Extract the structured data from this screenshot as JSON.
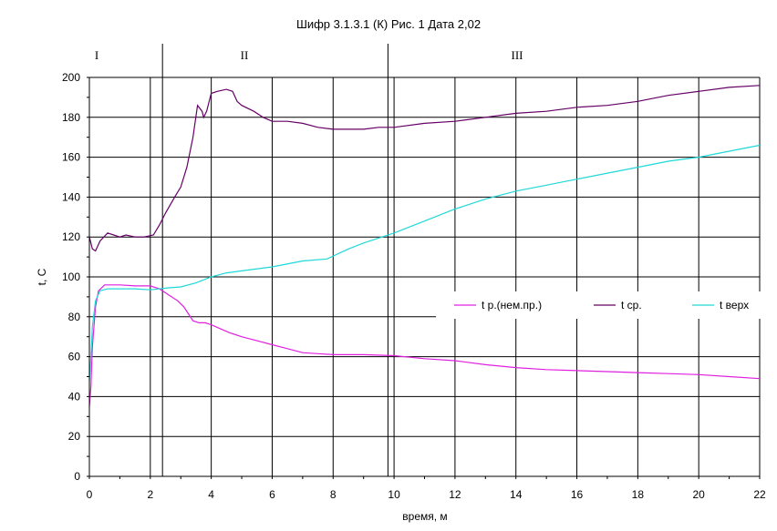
{
  "chart_data": {
    "type": "line",
    "title": "Шифр 3.1.3.1 (К) Рис. 1 Дата 2,02",
    "xlabel": "время, м",
    "ylabel": "t, C",
    "xlim": [
      0,
      22
    ],
    "ylim": [
      0,
      200
    ],
    "x_ticks": [
      "0",
      "2",
      "4",
      "6",
      "8",
      "10",
      "12",
      "14",
      "16",
      "18",
      "20",
      "22"
    ],
    "y_ticks": [
      "0",
      "20",
      "40",
      "60",
      "80",
      "100",
      "120",
      "140",
      "160",
      "180",
      "200"
    ],
    "grid": true,
    "legend_position": "right",
    "regions": [
      {
        "label": "I",
        "x_start": 0,
        "x_end": 2.4
      },
      {
        "label": "II",
        "x_start": 2.4,
        "x_end": 9.8
      },
      {
        "label": "III",
        "x_start": 9.8,
        "x_end": 22
      }
    ],
    "series": [
      {
        "name": "t р.(нем.пр.)",
        "color": "#e020e0",
        "points": [
          [
            0,
            35
          ],
          [
            0.05,
            45
          ],
          [
            0.1,
            65
          ],
          [
            0.2,
            85
          ],
          [
            0.3,
            93
          ],
          [
            0.5,
            96
          ],
          [
            1,
            96
          ],
          [
            1.5,
            95.5
          ],
          [
            2,
            95.5
          ],
          [
            2.3,
            94
          ],
          [
            2.6,
            91
          ],
          [
            2.9,
            88
          ],
          [
            3.1,
            85
          ],
          [
            3.4,
            78
          ],
          [
            3.6,
            77
          ],
          [
            3.8,
            77
          ],
          [
            4,
            76
          ],
          [
            4.3,
            74
          ],
          [
            4.6,
            72
          ],
          [
            5,
            70
          ],
          [
            5.5,
            68
          ],
          [
            6,
            66
          ],
          [
            6.5,
            64
          ],
          [
            7,
            62
          ],
          [
            7.5,
            61.5
          ],
          [
            8,
            61
          ],
          [
            9,
            61
          ],
          [
            10,
            60.5
          ],
          [
            11,
            59
          ],
          [
            12,
            58
          ],
          [
            13,
            56
          ],
          [
            14,
            54.5
          ],
          [
            15,
            53.5
          ],
          [
            16,
            53
          ],
          [
            17,
            52.5
          ],
          [
            18,
            52
          ],
          [
            19,
            51.5
          ],
          [
            20,
            51
          ],
          [
            21,
            50
          ],
          [
            22,
            49
          ]
        ]
      },
      {
        "name": "t ср.",
        "color": "#660066",
        "points": [
          [
            0,
            120
          ],
          [
            0.1,
            114
          ],
          [
            0.2,
            113
          ],
          [
            0.35,
            118
          ],
          [
            0.6,
            122
          ],
          [
            0.8,
            121
          ],
          [
            1,
            120
          ],
          [
            1.2,
            121
          ],
          [
            1.5,
            120
          ],
          [
            1.8,
            120
          ],
          [
            2.1,
            121
          ],
          [
            2.3,
            126
          ],
          [
            2.5,
            132
          ],
          [
            2.8,
            140
          ],
          [
            3.0,
            145
          ],
          [
            3.2,
            155
          ],
          [
            3.4,
            170
          ],
          [
            3.55,
            186
          ],
          [
            3.7,
            183
          ],
          [
            3.75,
            180
          ],
          [
            3.85,
            183
          ],
          [
            4.0,
            192
          ],
          [
            4.2,
            193
          ],
          [
            4.5,
            194
          ],
          [
            4.7,
            193
          ],
          [
            4.85,
            188
          ],
          [
            5,
            186
          ],
          [
            5.4,
            183
          ],
          [
            5.7,
            180
          ],
          [
            6,
            178
          ],
          [
            6.5,
            178
          ],
          [
            7,
            177
          ],
          [
            7.5,
            175
          ],
          [
            8,
            174
          ],
          [
            8.5,
            174
          ],
          [
            9,
            174
          ],
          [
            9.5,
            175
          ],
          [
            10,
            175
          ],
          [
            11,
            177
          ],
          [
            12,
            178
          ],
          [
            13,
            180
          ],
          [
            14,
            182
          ],
          [
            15,
            183
          ],
          [
            16,
            185
          ],
          [
            17,
            186
          ],
          [
            18,
            188
          ],
          [
            19,
            191
          ],
          [
            20,
            193
          ],
          [
            21,
            195
          ],
          [
            22,
            196
          ]
        ]
      },
      {
        "name": "t верх",
        "color": "#20d8d8",
        "points": [
          [
            0,
            48
          ],
          [
            0.05,
            60
          ],
          [
            0.1,
            75
          ],
          [
            0.2,
            88
          ],
          [
            0.35,
            93
          ],
          [
            0.6,
            94
          ],
          [
            1,
            94
          ],
          [
            1.5,
            94
          ],
          [
            2,
            93.5
          ],
          [
            2.6,
            94.5
          ],
          [
            3,
            95
          ],
          [
            3.5,
            97
          ],
          [
            4,
            100
          ],
          [
            4.5,
            102
          ],
          [
            5,
            103
          ],
          [
            6,
            105
          ],
          [
            7,
            108
          ],
          [
            7.8,
            109
          ],
          [
            8.5,
            114
          ],
          [
            9,
            117
          ],
          [
            10,
            122
          ],
          [
            11,
            128
          ],
          [
            12,
            134
          ],
          [
            13,
            139
          ],
          [
            14,
            143
          ],
          [
            15,
            146
          ],
          [
            16,
            149
          ],
          [
            17,
            152
          ],
          [
            18,
            155
          ],
          [
            19,
            158
          ],
          [
            20,
            160
          ],
          [
            21,
            163
          ],
          [
            22,
            166
          ]
        ]
      }
    ]
  }
}
